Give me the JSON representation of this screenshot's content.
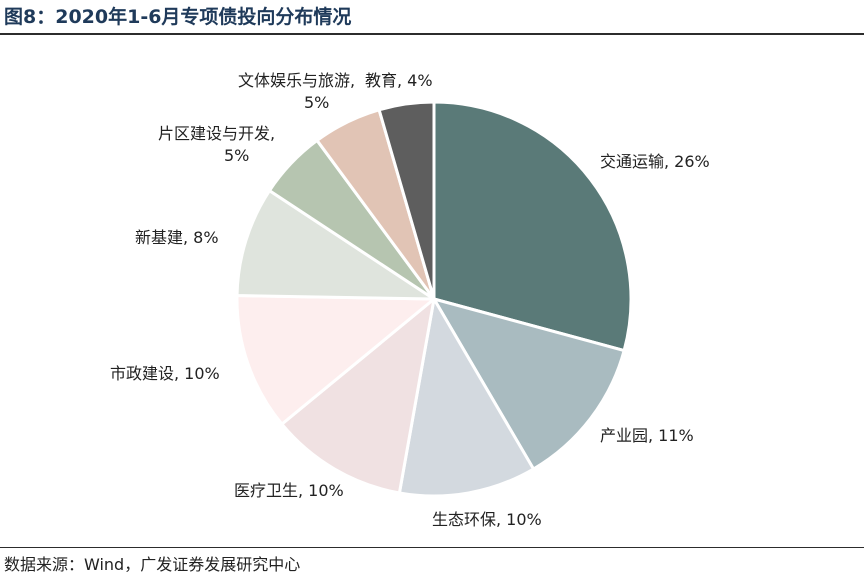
{
  "title": "图8：2020年1-6月专项债投向分布情况",
  "source": "数据来源：Wind，广发证券发展研究中心",
  "chart_data": {
    "type": "pie",
    "title": "图8：2020年1-6月专项债投向分布情况",
    "unit": "%",
    "slices": [
      {
        "label": "交通运输",
        "value": 26,
        "display": "交通运输, 26%",
        "color": "#5a7a78"
      },
      {
        "label": "产业园",
        "value": 11,
        "display": "产业园, 11%",
        "color": "#a9bbc0"
      },
      {
        "label": "生态环保",
        "value": 10,
        "display": "生态环保, 10%",
        "color": "#d3d9df"
      },
      {
        "label": "医疗卫生",
        "value": 10,
        "display": "医疗卫生, 10%",
        "color": "#f0e1e2"
      },
      {
        "label": "市政建设",
        "value": 10,
        "display": "市政建设, 10%",
        "color": "#fdeeee"
      },
      {
        "label": "新基建",
        "value": 8,
        "display": "新基建, 8%",
        "color": "#dfe4dd"
      },
      {
        "label": "片区建设与开发",
        "value": 5,
        "display": "片区建设与开发, 5%",
        "color": "#b6c5b0"
      },
      {
        "label": "文体娱乐与旅游",
        "value": 5,
        "display": "文体娱乐与旅游, 5%",
        "color": "#e1c4b5"
      },
      {
        "label": "教育",
        "value": 4,
        "display": "教育, 4%",
        "color": "#5e5e5e"
      }
    ],
    "legend": "none"
  }
}
